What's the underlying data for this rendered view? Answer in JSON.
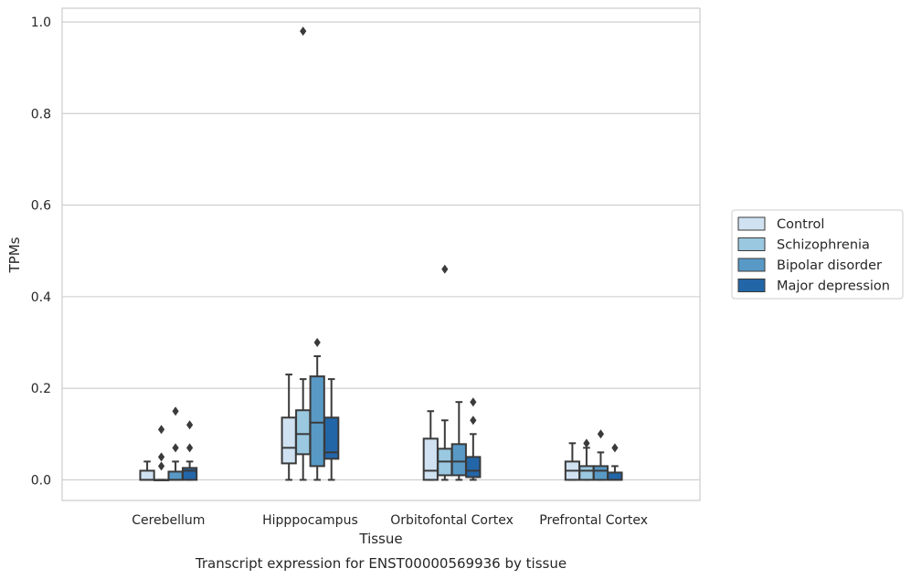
{
  "chart_data": {
    "type": "box",
    "title": "Transcript expression for ENST00000569936 by tissue",
    "xlabel": "Tissue",
    "ylabel": "TPMs",
    "ylim": [
      -0.045,
      1.03
    ],
    "yticks": [
      "0.0",
      "0.2",
      "0.4",
      "0.6",
      "0.8",
      "1.0"
    ],
    "grid": true,
    "legend_position": "right",
    "categories": [
      "Cerebellum",
      "Hipppocampus",
      "Orbitofontal Cortex",
      "Prefrontal Cortex"
    ],
    "series": [
      {
        "name": "Control",
        "color": "#d0e2f2",
        "boxes": [
          {
            "whislo": 0.0,
            "q1": 0.0,
            "med": 0.0,
            "q3": 0.02,
            "whishi": 0.04,
            "fliers": []
          },
          {
            "whislo": 0.0,
            "q1": 0.036,
            "med": 0.07,
            "q3": 0.136,
            "whishi": 0.23,
            "fliers": []
          },
          {
            "whislo": 0.0,
            "q1": 0.0,
            "med": 0.02,
            "q3": 0.09,
            "whishi": 0.15,
            "fliers": []
          },
          {
            "whislo": 0.0,
            "q1": 0.0,
            "med": 0.02,
            "q3": 0.04,
            "whishi": 0.08,
            "fliers": []
          }
        ]
      },
      {
        "name": "Schizophrenia",
        "color": "#9ac8e0",
        "boxes": [
          {
            "whislo": 0.0,
            "q1": 0.0,
            "med": 0.0,
            "q3": 0.0,
            "whishi": 0.0,
            "fliers": [
              0.03,
              0.05,
              0.11
            ]
          },
          {
            "whislo": 0.0,
            "q1": 0.056,
            "med": 0.1,
            "q3": 0.152,
            "whishi": 0.22,
            "fliers": [
              0.98
            ]
          },
          {
            "whislo": 0.0,
            "q1": 0.01,
            "med": 0.04,
            "q3": 0.068,
            "whishi": 0.13,
            "fliers": [
              0.46
            ]
          },
          {
            "whislo": 0.0,
            "q1": 0.0,
            "med": 0.02,
            "q3": 0.03,
            "whishi": 0.07,
            "fliers": [
              0.08
            ]
          }
        ]
      },
      {
        "name": "Bipolar disorder",
        "color": "#5899c6",
        "boxes": [
          {
            "whislo": 0.0,
            "q1": 0.0,
            "med": 0.0,
            "q3": 0.018,
            "whishi": 0.04,
            "fliers": [
              0.07,
              0.15
            ]
          },
          {
            "whislo": 0.0,
            "q1": 0.03,
            "med": 0.125,
            "q3": 0.226,
            "whishi": 0.27,
            "fliers": [
              0.3
            ]
          },
          {
            "whislo": 0.0,
            "q1": 0.01,
            "med": 0.04,
            "q3": 0.078,
            "whishi": 0.17,
            "fliers": []
          },
          {
            "whislo": 0.0,
            "q1": 0.0,
            "med": 0.02,
            "q3": 0.03,
            "whishi": 0.06,
            "fliers": [
              0.1
            ]
          }
        ]
      },
      {
        "name": "Major depression",
        "color": "#2366a8",
        "boxes": [
          {
            "whislo": 0.0,
            "q1": 0.0,
            "med": 0.02,
            "q3": 0.026,
            "whishi": 0.04,
            "fliers": [
              0.07,
              0.12
            ]
          },
          {
            "whislo": 0.0,
            "q1": 0.046,
            "med": 0.06,
            "q3": 0.136,
            "whishi": 0.22,
            "fliers": []
          },
          {
            "whislo": 0.0,
            "q1": 0.006,
            "med": 0.02,
            "q3": 0.05,
            "whishi": 0.1,
            "fliers": [
              0.13,
              0.17
            ]
          },
          {
            "whislo": 0.0,
            "q1": 0.0,
            "med": 0.0,
            "q3": 0.016,
            "whishi": 0.03,
            "fliers": [
              0.07
            ]
          }
        ]
      }
    ]
  }
}
